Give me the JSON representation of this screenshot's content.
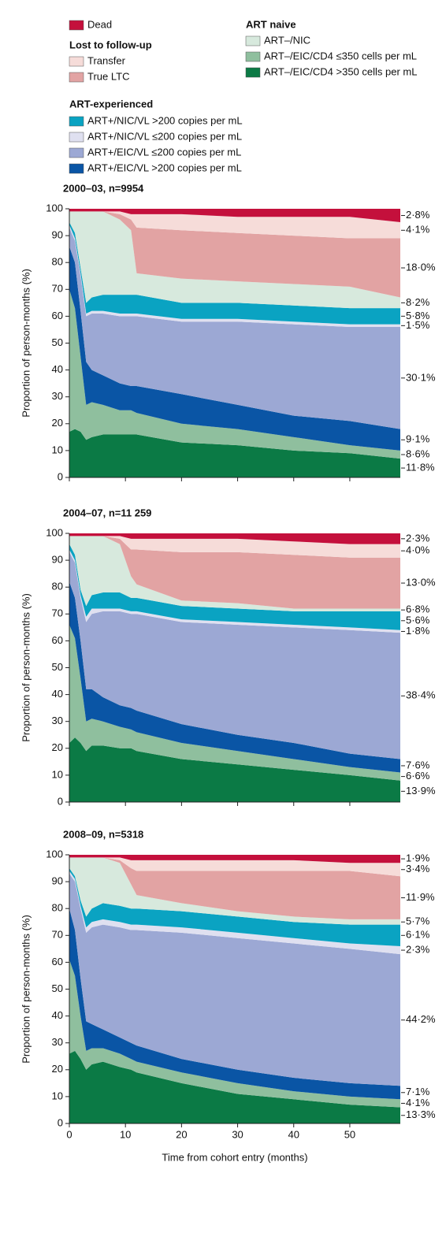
{
  "legend_headings": [
    "Lost to follow-up",
    "ART naive",
    "ART-experienced"
  ],
  "chart_data": [
    {
      "type": "area",
      "stacked": true,
      "title": "2000–03, n=9954",
      "ylabel": "Proportion of person-months (%)",
      "x": [
        0,
        1,
        2,
        3,
        4,
        6,
        9,
        11,
        12,
        20,
        30,
        40,
        50,
        59
      ],
      "xlim": [
        0,
        59
      ],
      "ylim": [
        0,
        100
      ],
      "xticks": [
        0,
        10,
        20,
        30,
        40,
        50
      ],
      "xtick_labels": false,
      "yticks": [
        0,
        10,
        20,
        30,
        40,
        50,
        60,
        70,
        80,
        90,
        100
      ],
      "series": [
        {
          "name": "ART–/EIC/CD4 >350 cells per mL",
          "color": "#0b7a45",
          "end_label": "11·8%",
          "values": [
            17,
            18,
            17,
            14,
            15,
            16,
            16,
            16,
            16,
            13,
            12,
            10,
            9,
            7
          ]
        },
        {
          "name": "ART–/EIC/CD4 ≤350 cells per mL",
          "color": "#8fbf9e",
          "end_label": "8·6%",
          "values": [
            53,
            45,
            28,
            13,
            13,
            11,
            9,
            9,
            8,
            7,
            6,
            5,
            3,
            3
          ]
        },
        {
          "name": "ART+/EIC/VL >200 copies per mL",
          "color": "#0a55a5",
          "end_label": "9·1%",
          "values": [
            16,
            17,
            17,
            16,
            12,
            11,
            10,
            9,
            10,
            11,
            9,
            8,
            9,
            8
          ]
        },
        {
          "name": "ART+/EIC/VL ≤200 copies per mL",
          "color": "#9ca8d4",
          "end_label": "30·1%",
          "values": [
            7,
            8,
            13,
            17,
            21,
            23,
            25,
            26,
            26,
            27,
            31,
            34,
            35,
            38
          ]
        },
        {
          "name": "ART+/NIC/VL ≤200 copies per mL",
          "color": "#dfe0f0",
          "end_label": "1·5%",
          "values": [
            1,
            1,
            1,
            1,
            1,
            1,
            1,
            1,
            1,
            1,
            1,
            1,
            1,
            1
          ]
        },
        {
          "name": "ART+/NIC/VL >200 copies per mL",
          "color": "#0aa3c2",
          "end_label": "5·8%",
          "values": [
            1,
            2,
            2,
            4,
            5,
            6,
            7,
            7,
            7,
            6,
            6,
            6,
            6,
            6
          ]
        },
        {
          "name": "ART–/NIC",
          "color": "#d7e9dd",
          "end_label": "8·2%",
          "values": [
            4,
            8,
            21,
            34,
            32,
            31,
            28,
            24,
            8,
            9,
            8,
            8,
            8,
            4
          ]
        },
        {
          "name": "True LTC",
          "color": "#e2a3a3",
          "end_label": "18·0%",
          "values": [
            0,
            0,
            0,
            0,
            0,
            0,
            2,
            4,
            17,
            18,
            18,
            18,
            18,
            22
          ]
        },
        {
          "name": "Transfer",
          "color": "#f6dcd9",
          "end_label": "4·1%",
          "values": [
            0,
            0,
            0,
            0,
            0,
            0,
            1,
            2,
            5,
            6,
            6,
            7,
            8,
            6
          ]
        },
        {
          "name": "Dead",
          "color": "#c4103c",
          "end_label": "2·8%",
          "values": [
            1,
            1,
            1,
            1,
            1,
            1,
            1,
            2,
            2,
            2,
            3,
            3,
            3,
            5
          ]
        }
      ]
    },
    {
      "type": "area",
      "stacked": true,
      "title": "2004–07, n=11 259",
      "ylabel": "Proportion of person-months (%)",
      "x": [
        0,
        1,
        2,
        3,
        4,
        6,
        9,
        11,
        12,
        20,
        30,
        40,
        50,
        59
      ],
      "xlim": [
        0,
        59
      ],
      "ylim": [
        0,
        100
      ],
      "xticks": [
        0,
        10,
        20,
        30,
        40,
        50
      ],
      "xtick_labels": false,
      "yticks": [
        0,
        10,
        20,
        30,
        40,
        50,
        60,
        70,
        80,
        90,
        100
      ],
      "series": [
        {
          "name": "ART–/EIC/CD4 >350 cells per mL",
          "color": "#0b7a45",
          "end_label": "13·9%",
          "values": [
            22,
            24,
            22,
            19,
            21,
            21,
            20,
            20,
            19,
            16,
            14,
            12,
            10,
            8
          ]
        },
        {
          "name": "ART–/EIC/CD4 ≤350 cells per mL",
          "color": "#8fbf9e",
          "end_label": "6·6%",
          "values": [
            44,
            37,
            24,
            11,
            10,
            9,
            8,
            7,
            7,
            6,
            5,
            4,
            3,
            3
          ]
        },
        {
          "name": "ART+/EIC/VL >200 copies per mL",
          "color": "#0a55a5",
          "end_label": "7·6%",
          "values": [
            16,
            15,
            14,
            12,
            11,
            9,
            8,
            8,
            8,
            7,
            6,
            6,
            5,
            5
          ]
        },
        {
          "name": "ART+/EIC/VL ≤200 copies per mL",
          "color": "#9ca8d4",
          "end_label": "38·4%",
          "values": [
            11,
            13,
            16,
            25,
            28,
            32,
            35,
            35,
            36,
            38,
            41,
            43,
            46,
            47
          ]
        },
        {
          "name": "ART+/NIC/VL ≤200 copies per mL",
          "color": "#dfe0f0",
          "end_label": "1·8%",
          "values": [
            1,
            1,
            1,
            2,
            2,
            1,
            1,
            1,
            1,
            1,
            1,
            1,
            1,
            1
          ]
        },
        {
          "name": "ART+/NIC/VL >200 copies per mL",
          "color": "#0aa3c2",
          "end_label": "5·6%",
          "values": [
            2,
            2,
            2,
            4,
            5,
            6,
            6,
            5,
            5,
            5,
            5,
            5,
            6,
            7
          ]
        },
        {
          "name": "ART–/NIC",
          "color": "#d7e9dd",
          "end_label": "6·8%",
          "values": [
            3,
            7,
            20,
            26,
            22,
            21,
            18,
            8,
            5,
            2,
            2,
            1,
            1,
            1
          ]
        },
        {
          "name": "True LTC",
          "color": "#e2a3a3",
          "end_label": "13·0%",
          "values": [
            0,
            0,
            0,
            0,
            0,
            0,
            2,
            10,
            13,
            18,
            19,
            20,
            19,
            19
          ]
        },
        {
          "name": "Transfer",
          "color": "#f6dcd9",
          "end_label": "4·0%",
          "values": [
            0,
            0,
            0,
            0,
            0,
            0,
            1,
            4,
            4,
            5,
            5,
            5,
            5,
            5
          ]
        },
        {
          "name": "Dead",
          "color": "#c4103c",
          "end_label": "2·3%",
          "values": [
            1,
            1,
            1,
            1,
            1,
            1,
            1,
            2,
            2,
            2,
            2,
            3,
            4,
            4
          ]
        }
      ]
    },
    {
      "type": "area",
      "stacked": true,
      "title": "2008–09, n=5318",
      "ylabel": "Proportion of person-months (%)",
      "xlabel": "Time from cohort entry (months)",
      "x": [
        0,
        1,
        2,
        3,
        4,
        6,
        9,
        11,
        12,
        20,
        30,
        40,
        50,
        59
      ],
      "xlim": [
        0,
        59
      ],
      "ylim": [
        0,
        100
      ],
      "xticks": [
        0,
        10,
        20,
        30,
        40,
        50
      ],
      "xtick_labels": true,
      "yticks": [
        0,
        10,
        20,
        30,
        40,
        50,
        60,
        70,
        80,
        90,
        100
      ],
      "series": [
        {
          "name": "ART–/EIC/CD4 >350 cells per mL",
          "color": "#0b7a45",
          "end_label": "13·3%",
          "values": [
            26,
            27,
            24,
            20,
            22,
            23,
            21,
            20,
            19,
            15,
            11,
            9,
            7,
            6
          ]
        },
        {
          "name": "ART–/EIC/CD4 ≤350 cells per mL",
          "color": "#8fbf9e",
          "end_label": "4·1%",
          "values": [
            35,
            28,
            16,
            7,
            6,
            5,
            5,
            4,
            4,
            4,
            4,
            3,
            3,
            3
          ]
        },
        {
          "name": "ART+/EIC/VL >200 copies per mL",
          "color": "#0a55a5",
          "end_label": "7·1%",
          "values": [
            19,
            17,
            14,
            11,
            9,
            7,
            6,
            6,
            6,
            5,
            5,
            5,
            5,
            5
          ]
        },
        {
          "name": "ART+/EIC/VL ≤200 copies per mL",
          "color": "#9ca8d4",
          "end_label": "44·2%",
          "values": [
            13,
            18,
            26,
            33,
            36,
            39,
            41,
            42,
            43,
            47,
            49,
            50,
            50,
            49
          ]
        },
        {
          "name": "ART+/NIC/VL ≤200 copies per mL",
          "color": "#dfe0f0",
          "end_label": "2·3%",
          "values": [
            1,
            1,
            1,
            2,
            2,
            2,
            2,
            2,
            2,
            2,
            2,
            2,
            2,
            3
          ]
        },
        {
          "name": "ART+/NIC/VL >200 copies per mL",
          "color": "#0aa3c2",
          "end_label": "6·1%",
          "values": [
            1,
            1,
            2,
            4,
            5,
            6,
            6,
            6,
            6,
            6,
            6,
            6,
            7,
            8
          ]
        },
        {
          "name": "ART–/NIC",
          "color": "#d7e9dd",
          "end_label": "5·7%",
          "values": [
            4,
            7,
            16,
            22,
            19,
            17,
            16,
            9,
            5,
            3,
            2,
            2,
            2,
            2
          ]
        },
        {
          "name": "True LTC",
          "color": "#e2a3a3",
          "end_label": "11·9%",
          "values": [
            0,
            0,
            0,
            0,
            0,
            0,
            1,
            6,
            9,
            12,
            15,
            17,
            18,
            16
          ]
        },
        {
          "name": "Transfer",
          "color": "#f6dcd9",
          "end_label": "3·4%",
          "values": [
            0,
            0,
            0,
            0,
            0,
            0,
            1,
            3,
            4,
            4,
            4,
            4,
            3,
            5
          ]
        },
        {
          "name": "Dead",
          "color": "#c4103c",
          "end_label": "1·9%",
          "values": [
            1,
            1,
            1,
            1,
            1,
            1,
            1,
            2,
            2,
            2,
            2,
            2,
            3,
            3
          ]
        }
      ]
    }
  ]
}
